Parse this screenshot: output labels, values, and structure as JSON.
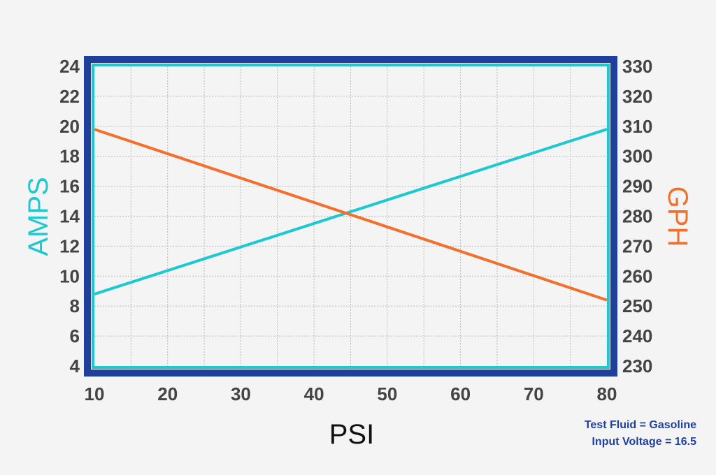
{
  "chart_data": {
    "type": "line",
    "x": [
      10,
      80
    ],
    "xlabel": "PSI",
    "x_ticks": [
      "10",
      "20",
      "30",
      "40",
      "50",
      "60",
      "70",
      "80"
    ],
    "xlim": [
      10,
      80
    ],
    "left_axis": {
      "label": "AMPS",
      "ylim": [
        4,
        24
      ],
      "ticks": [
        "4",
        "6",
        "8",
        "10",
        "12",
        "14",
        "16",
        "18",
        "20",
        "22",
        "24"
      ]
    },
    "right_axis": {
      "label": "GPH",
      "ylim": [
        230,
        330
      ],
      "ticks": [
        "230",
        "240",
        "250",
        "260",
        "270",
        "280",
        "290",
        "300",
        "310",
        "320",
        "330"
      ]
    },
    "series": [
      {
        "axis": "left",
        "color": "#1ec8d0",
        "values": [
          8.8,
          19.8
        ]
      },
      {
        "axis": "right",
        "color": "#f26f2c",
        "values": [
          309,
          252
        ]
      }
    ],
    "grid": true,
    "colors": {
      "frame": "#1f3f9c",
      "inner_border": "#1ec8d0",
      "amps_title": "#1ec8d0",
      "gph_title": "#f26f2c",
      "psi_title": "#111111"
    }
  },
  "notes": {
    "line1": "Test Fluid = Gasoline",
    "line2": "Input Voltage = 16.5"
  }
}
